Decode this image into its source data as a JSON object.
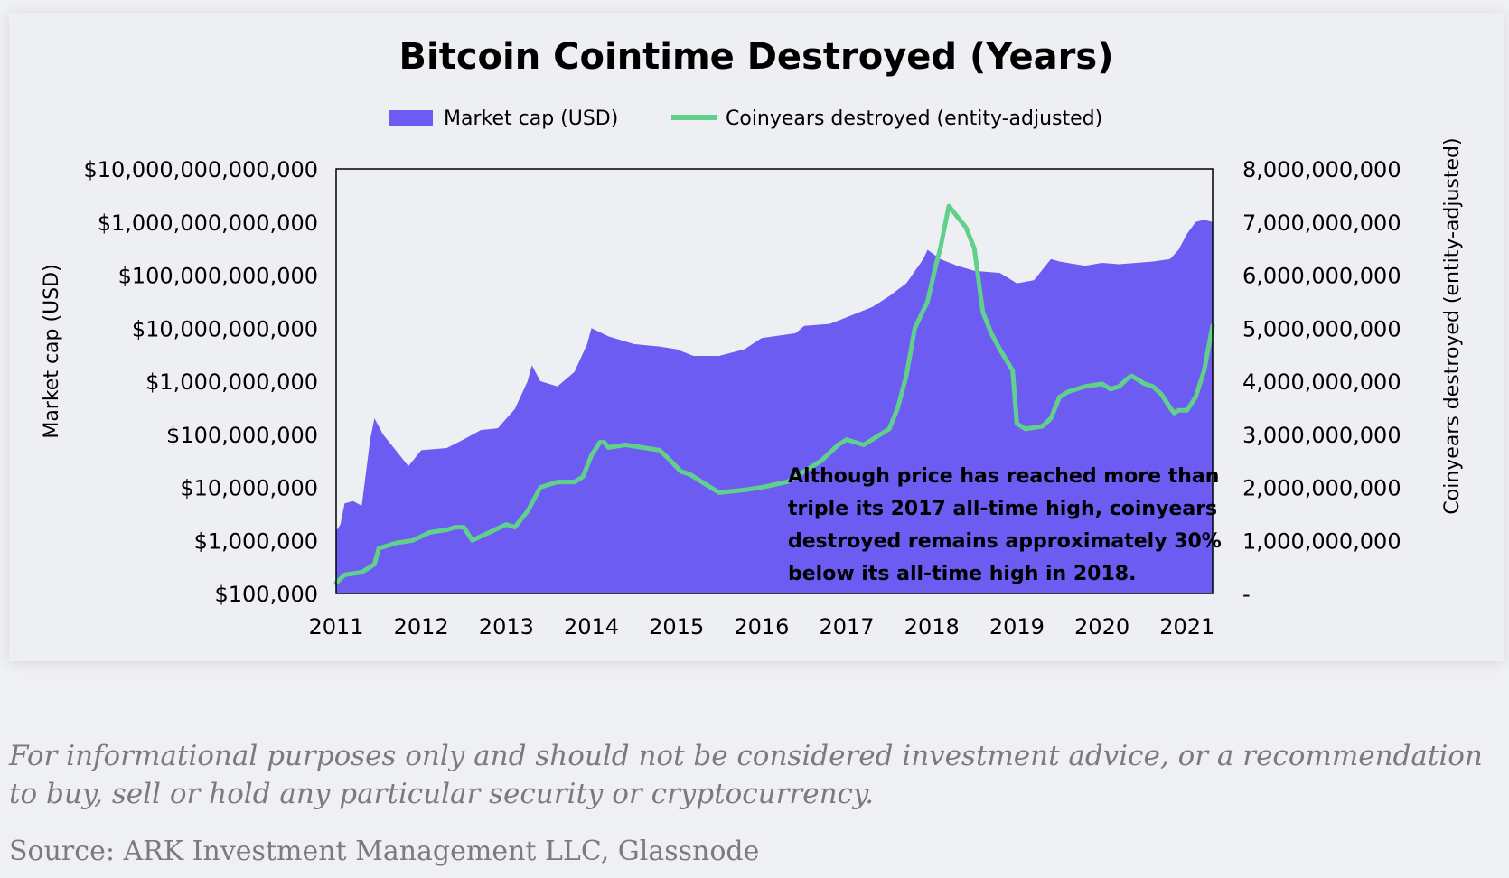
{
  "chart_data": {
    "type": "area+line",
    "title": "Bitcoin Cointime Destroyed (Years)",
    "ylabel_left": "Market cap (USD)",
    "ylabel_right": "Coinyears destroyed (entity-adjusted)",
    "y_left_scale": "log",
    "y_left_range": [
      100000,
      10000000000000
    ],
    "y_left_ticks": [
      "$100,000",
      "$1,000,000",
      "$10,000,000",
      "$100,000,000",
      "$1,000,000,000",
      "$10,000,000,000",
      "$100,000,000,000",
      "$1,000,000,000,000",
      "$10,000,000,000,000"
    ],
    "y_right_range": [
      0,
      8000000000
    ],
    "y_right_ticks": [
      "-",
      "1,000,000,000",
      "2,000,000,000",
      "3,000,000,000",
      "4,000,000,000",
      "5,000,000,000",
      "6,000,000,000",
      "7,000,000,000",
      "8,000,000,000"
    ],
    "x_range": [
      2011,
      2021.3
    ],
    "x_ticks": [
      "2011",
      "2012",
      "2013",
      "2014",
      "2015",
      "2016",
      "2017",
      "2018",
      "2019",
      "2020",
      "2021"
    ],
    "legend_position": "top-center",
    "grid": false,
    "annotation": "Although price has reached more than triple its 2017 all-time high, coinyears destroyed remains approximately 30% below its all-time high in 2018.",
    "series": [
      {
        "name": "Market cap (USD)",
        "kind": "area",
        "color": "#6c5cf2",
        "x": [
          2011.0,
          2011.05,
          2011.1,
          2011.2,
          2011.3,
          2011.4,
          2011.45,
          2011.55,
          2011.7,
          2011.85,
          2012.0,
          2012.3,
          2012.5,
          2012.7,
          2012.9,
          2013.1,
          2013.25,
          2013.3,
          2013.4,
          2013.6,
          2013.8,
          2013.95,
          2014.0,
          2014.2,
          2014.5,
          2014.8,
          2015.0,
          2015.2,
          2015.5,
          2015.8,
          2016.0,
          2016.4,
          2016.5,
          2016.8,
          2017.0,
          2017.3,
          2017.5,
          2017.7,
          2017.9,
          2017.95,
          2018.1,
          2018.3,
          2018.5,
          2018.8,
          2019.0,
          2019.2,
          2019.4,
          2019.5,
          2019.8,
          2020.0,
          2020.2,
          2020.4,
          2020.6,
          2020.8,
          2020.9,
          2021.0,
          2021.1,
          2021.2,
          2021.3
        ],
        "values": [
          1500000,
          2000000,
          5000000,
          5500000,
          4500000,
          80000000,
          200000000,
          100000000,
          50000000,
          25000000,
          50000000,
          55000000,
          80000000,
          120000000,
          130000000,
          300000000,
          1000000000,
          2000000000,
          1000000000,
          800000000,
          1500000000,
          5000000000,
          10000000000,
          7000000000,
          5000000000,
          4500000000,
          4000000000,
          3000000000,
          3000000000,
          4000000000,
          6500000000,
          8000000000,
          11000000000,
          12000000000,
          16000000000,
          25000000000,
          40000000000,
          70000000000,
          200000000000,
          300000000000,
          200000000000,
          150000000000,
          120000000000,
          110000000000,
          70000000000,
          80000000000,
          200000000000,
          180000000000,
          150000000000,
          170000000000,
          160000000000,
          170000000000,
          180000000000,
          200000000000,
          300000000000,
          600000000000,
          1000000000000,
          1100000000000,
          1000000000000
        ]
      },
      {
        "name": "Coinyears destroyed (entity-adjusted)",
        "kind": "line",
        "color": "#5fd18b",
        "x": [
          2011.0,
          2011.1,
          2011.3,
          2011.45,
          2011.5,
          2011.7,
          2011.9,
          2012.1,
          2012.3,
          2012.4,
          2012.5,
          2012.6,
          2012.8,
          2013.0,
          2013.1,
          2013.2,
          2013.25,
          2013.4,
          2013.6,
          2013.75,
          2013.8,
          2013.9,
          2014.0,
          2014.1,
          2014.15,
          2014.2,
          2014.4,
          2014.6,
          2014.8,
          2014.9,
          2015.05,
          2015.15,
          2015.5,
          2015.8,
          2016.0,
          2016.3,
          2016.5,
          2016.7,
          2016.9,
          2017.0,
          2017.2,
          2017.4,
          2017.5,
          2017.6,
          2017.7,
          2017.8,
          2017.95,
          2018.05,
          2018.1,
          2018.2,
          2018.3,
          2018.4,
          2018.5,
          2018.6,
          2018.7,
          2018.8,
          2018.95,
          2019.0,
          2019.1,
          2019.3,
          2019.4,
          2019.5,
          2019.6,
          2019.8,
          2020.0,
          2020.1,
          2020.2,
          2020.3,
          2020.35,
          2020.45,
          2020.5,
          2020.6,
          2020.7,
          2020.8,
          2020.85,
          2020.9,
          2021.0,
          2021.1,
          2021.2,
          2021.3
        ],
        "values": [
          200000000,
          350000000,
          400000000,
          550000000,
          850000000,
          950000000,
          1000000000,
          1150000000,
          1200000000,
          1250000000,
          1250000000,
          1000000000,
          1150000000,
          1300000000,
          1250000000,
          1450000000,
          1550000000,
          2000000000,
          2100000000,
          2100000000,
          2100000000,
          2200000000,
          2600000000,
          2850000000,
          2850000000,
          2750000000,
          2800000000,
          2750000000,
          2700000000,
          2550000000,
          2300000000,
          2250000000,
          1900000000,
          1950000000,
          2000000000,
          2100000000,
          2300000000,
          2500000000,
          2800000000,
          2900000000,
          2800000000,
          3000000000,
          3100000000,
          3500000000,
          4100000000,
          5000000000,
          5500000000,
          6200000000,
          6500000000,
          7300000000,
          7100000000,
          6900000000,
          6500000000,
          5300000000,
          4900000000,
          4600000000,
          4200000000,
          3200000000,
          3100000000,
          3150000000,
          3300000000,
          3700000000,
          3800000000,
          3900000000,
          3950000000,
          3850000000,
          3900000000,
          4050000000,
          4100000000,
          4000000000,
          3950000000,
          3900000000,
          3750000000,
          3500000000,
          3400000000,
          3450000000,
          3450000000,
          3700000000,
          4200000000,
          5050000000
        ]
      }
    ]
  },
  "footer": {
    "disclaimer": "For informational purposes only and should not be considered investment advice, or a recommendation to buy, sell or hold any particular security or cryptocurrency.",
    "source": "Source: ARK Investment Management LLC, Glassnode"
  }
}
